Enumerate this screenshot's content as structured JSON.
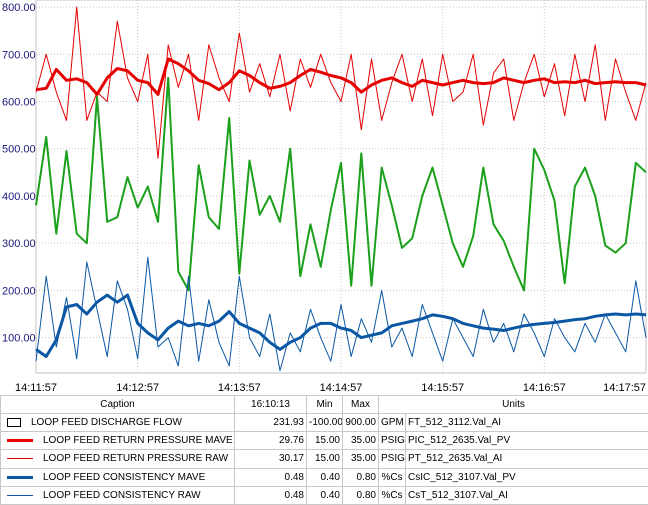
{
  "chart_data": {
    "type": "line",
    "x_ticks": [
      "14:11:57",
      "14:12:57",
      "14:13:57",
      "14:14:57",
      "14:15:57",
      "14:16:57",
      "14:17:57"
    ],
    "y_ticks": [
      "100.00",
      "200.00",
      "300.00",
      "400.00",
      "500.00",
      "600.00",
      "700.00",
      "800.00"
    ],
    "ylim": [
      25,
      815
    ],
    "x_range": [
      "14:11:57",
      "14:17:57"
    ],
    "cursor_x": "14:13:57",
    "grid": true,
    "series": [
      {
        "name": "LOOP FEED DISCHARGE FLOW",
        "color": "#1aa01a",
        "width": 2,
        "x": [
          0,
          6,
          12,
          18,
          24,
          30,
          36,
          42,
          48,
          54,
          60,
          66,
          72,
          78,
          84,
          90,
          96,
          102,
          108,
          114,
          120,
          126,
          132,
          138,
          144,
          150,
          156,
          162,
          168,
          174,
          180,
          186,
          192,
          198,
          204,
          210,
          216,
          222,
          228,
          234,
          240,
          246,
          252,
          258,
          264,
          270,
          276,
          282,
          288,
          294,
          300,
          306,
          312,
          318,
          324,
          330,
          336,
          342,
          348,
          354,
          360
        ],
        "values": [
          380,
          525,
          320,
          495,
          320,
          300,
          610,
          345,
          355,
          440,
          375,
          420,
          345,
          650,
          240,
          200,
          465,
          355,
          330,
          565,
          235,
          475,
          360,
          400,
          345,
          500,
          230,
          340,
          250,
          370,
          470,
          210,
          490,
          210,
          460,
          380,
          290,
          310,
          400,
          460,
          380,
          300,
          250,
          315,
          460,
          340,
          305,
          250,
          200,
          500,
          455,
          390,
          215,
          420,
          460,
          400,
          295,
          280,
          300,
          470,
          450
        ]
      },
      {
        "name": "LOOP FEED RETURN PRESSURE MAVE",
        "color": "#e60000",
        "width": 3,
        "x": [
          0,
          6,
          12,
          18,
          24,
          30,
          36,
          42,
          48,
          54,
          60,
          66,
          72,
          78,
          84,
          90,
          96,
          102,
          108,
          114,
          120,
          126,
          132,
          138,
          144,
          150,
          156,
          162,
          168,
          174,
          180,
          186,
          192,
          198,
          204,
          210,
          216,
          222,
          228,
          234,
          240,
          246,
          252,
          258,
          264,
          270,
          276,
          282,
          288,
          294,
          300,
          306,
          312,
          318,
          324,
          330,
          336,
          342,
          348,
          354,
          360
        ],
        "values": [
          625,
          628,
          668,
          645,
          648,
          640,
          615,
          650,
          670,
          665,
          645,
          640,
          615,
          690,
          680,
          665,
          645,
          638,
          625,
          640,
          665,
          655,
          640,
          628,
          632,
          640,
          655,
          668,
          662,
          655,
          650,
          640,
          620,
          635,
          645,
          650,
          640,
          632,
          645,
          640,
          635,
          640,
          645,
          640,
          638,
          640,
          650,
          645,
          640,
          645,
          648,
          640,
          642,
          640,
          645,
          638,
          640,
          642,
          640,
          640,
          635
        ]
      },
      {
        "name": "LOOP FEED RETURN PRESSURE RAW",
        "color": "#e60000",
        "width": 1,
        "x": [
          0,
          6,
          12,
          18,
          24,
          30,
          36,
          42,
          48,
          54,
          60,
          66,
          72,
          78,
          84,
          90,
          96,
          102,
          108,
          114,
          120,
          126,
          132,
          138,
          144,
          150,
          156,
          162,
          168,
          174,
          180,
          186,
          192,
          198,
          204,
          210,
          216,
          222,
          228,
          234,
          240,
          246,
          252,
          258,
          264,
          270,
          276,
          282,
          288,
          294,
          300,
          306,
          312,
          318,
          324,
          330,
          336,
          342,
          348,
          354,
          360
        ],
        "values": [
          620,
          700,
          620,
          560,
          800,
          560,
          620,
          600,
          770,
          650,
          600,
          700,
          480,
          720,
          630,
          700,
          560,
          720,
          650,
          600,
          745,
          620,
          680,
          610,
          700,
          580,
          690,
          630,
          700,
          640,
          600,
          700,
          540,
          690,
          560,
          640,
          700,
          600,
          690,
          570,
          700,
          600,
          620,
          700,
          550,
          660,
          690,
          560,
          640,
          700,
          610,
          680,
          570,
          700,
          600,
          720,
          560,
          690,
          620,
          560,
          640
        ]
      },
      {
        "name": "LOOP FEED CONSISTENCY MAVE",
        "color": "#0a57a5",
        "width": 3,
        "x": [
          0,
          6,
          12,
          18,
          24,
          30,
          36,
          42,
          48,
          54,
          60,
          66,
          72,
          78,
          84,
          90,
          96,
          102,
          108,
          114,
          120,
          126,
          132,
          138,
          144,
          150,
          156,
          162,
          168,
          174,
          180,
          186,
          192,
          198,
          204,
          210,
          216,
          222,
          228,
          234,
          240,
          246,
          252,
          258,
          264,
          270,
          276,
          282,
          288,
          294,
          300,
          306,
          312,
          318,
          324,
          330,
          336,
          342,
          348,
          354,
          360
        ],
        "values": [
          75,
          60,
          95,
          165,
          170,
          150,
          175,
          190,
          175,
          190,
          130,
          110,
          95,
          120,
          135,
          125,
          130,
          125,
          135,
          155,
          130,
          120,
          110,
          90,
          75,
          90,
          100,
          120,
          130,
          130,
          120,
          115,
          100,
          105,
          110,
          125,
          130,
          135,
          140,
          148,
          145,
          140,
          130,
          125,
          120,
          118,
          115,
          120,
          125,
          128,
          130,
          132,
          135,
          138,
          140,
          145,
          148,
          150,
          148,
          150,
          148
        ]
      },
      {
        "name": "LOOP FEED CONSISTENCY RAW",
        "color": "#0a57a5",
        "width": 1,
        "x": [
          0,
          6,
          12,
          18,
          24,
          30,
          36,
          42,
          48,
          54,
          60,
          66,
          72,
          78,
          84,
          90,
          96,
          102,
          108,
          114,
          120,
          126,
          132,
          138,
          144,
          150,
          156,
          162,
          168,
          174,
          180,
          186,
          192,
          198,
          204,
          210,
          216,
          222,
          228,
          234,
          240,
          246,
          252,
          258,
          264,
          270,
          276,
          282,
          288,
          294,
          300,
          306,
          312,
          318,
          324,
          330,
          336,
          342,
          348,
          354,
          360
        ],
        "values": [
          50,
          230,
          80,
          185,
          55,
          260,
          160,
          60,
          220,
          160,
          55,
          270,
          80,
          100,
          40,
          230,
          50,
          180,
          90,
          40,
          230,
          100,
          60,
          150,
          30,
          110,
          70,
          160,
          100,
          50,
          170,
          60,
          140,
          90,
          200,
          80,
          120,
          60,
          170,
          110,
          50,
          140,
          100,
          60,
          160,
          90,
          130,
          70,
          150,
          110,
          60,
          140,
          100,
          70,
          130,
          90,
          150,
          110,
          70,
          220,
          100
        ]
      }
    ],
    "legend": {
      "headers": {
        "caption": "Caption",
        "time": "16:10:13",
        "min": "Min",
        "max": "Max",
        "units": "Units"
      },
      "rows": [
        {
          "caption": "LOOP FEED DISCHARGE FLOW",
          "value": "231.93",
          "min": "-100.00",
          "max": "900.00",
          "eu": "GPM",
          "tag": "FT_512_3112.Val_AI",
          "style": "box"
        },
        {
          "caption": "LOOP FEED RETURN PRESSURE MAVE",
          "value": "29.76",
          "min": "15.00",
          "max": "35.00",
          "eu": "PSIG",
          "tag": "PIC_512_2635.Val_PV",
          "style": "thick",
          "color": "#e60000"
        },
        {
          "caption": "LOOP FEED RETURN PRESSURE RAW",
          "value": "30.17",
          "min": "15.00",
          "max": "35.00",
          "eu": "PSIG",
          "tag": "PT_512_2635.Val_AI",
          "style": "thin",
          "color": "#e60000"
        },
        {
          "caption": "LOOP FEED CONSISTENCY MAVE",
          "value": "0.48",
          "min": "0.40",
          "max": "0.80",
          "eu": "%Cs",
          "tag": "CsIC_512_3107.Val_PV",
          "style": "thick",
          "color": "#0a57a5"
        },
        {
          "caption": "LOOP FEED CONSISTENCY RAW",
          "value": "0.48",
          "min": "0.40",
          "max": "0.80",
          "eu": "%Cs",
          "tag": "CsT_512_3107.Val_AI",
          "style": "thin",
          "color": "#0a57a5"
        }
      ]
    }
  }
}
